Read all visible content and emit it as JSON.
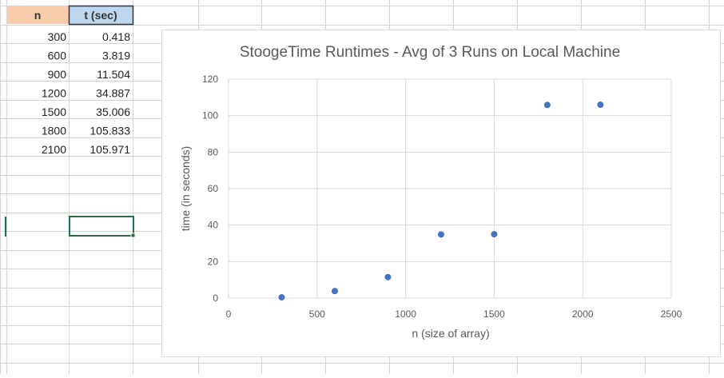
{
  "spreadsheet": {
    "headers": [
      "n",
      "t (sec)"
    ],
    "rows": [
      [
        "300",
        "0.418"
      ],
      [
        "600",
        "3.819"
      ],
      [
        "900",
        "11.504"
      ],
      [
        "1200",
        "34.887"
      ],
      [
        "1500",
        "35.006"
      ],
      [
        "1800",
        "105.833"
      ],
      [
        "2100",
        "105.971"
      ]
    ],
    "header_colors": {
      "n": "#f8cbad",
      "t": "#bdd7ee"
    },
    "selection_color": "#217346",
    "gridline_color": "#d4d4d4"
  },
  "chart_data": {
    "type": "scatter",
    "title": "StoogeTime Runtimes - Avg of 3 Runs on Local Machine",
    "xlabel": "n (size of array)",
    "ylabel": "time (in seconds)",
    "xlim": [
      0,
      2500
    ],
    "ylim": [
      0,
      120
    ],
    "xticks": [
      0,
      500,
      1000,
      1500,
      2000,
      2500
    ],
    "yticks": [
      0,
      20,
      40,
      60,
      80,
      100,
      120
    ],
    "grid": true,
    "legend": "none",
    "marker_color": "#4472c4",
    "series": [
      {
        "x": [
          300,
          600,
          900,
          1200,
          1500,
          1800,
          2100
        ],
        "y": [
          0.418,
          3.819,
          11.504,
          34.887,
          35.006,
          105.833,
          105.971
        ]
      }
    ]
  }
}
